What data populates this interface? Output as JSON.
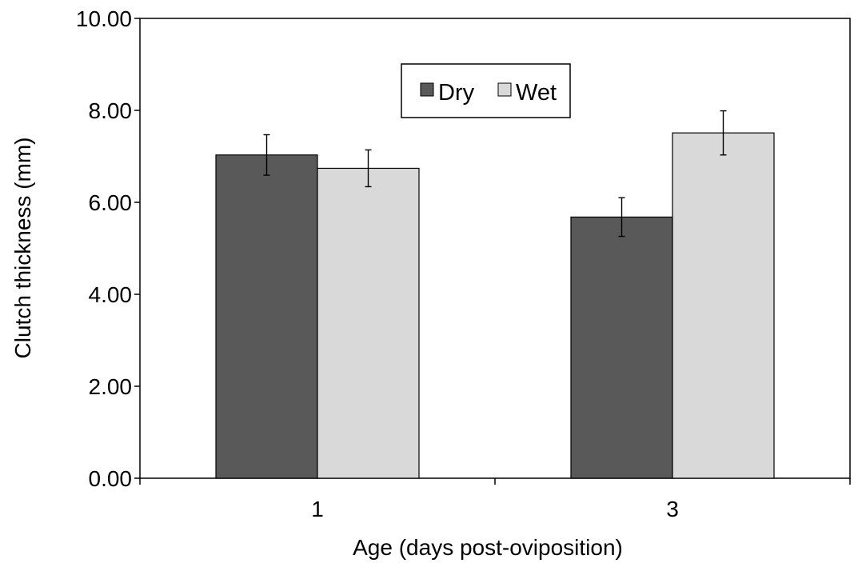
{
  "chart_data": {
    "type": "bar",
    "xlabel": "Age (days post-oviposition)",
    "ylabel": "Clutch thickness (mm)",
    "ylim": [
      0,
      10
    ],
    "y_ticks": [
      "0.00",
      "2.00",
      "4.00",
      "6.00",
      "8.00",
      "10.00"
    ],
    "categories": [
      "1",
      "3"
    ],
    "series": [
      {
        "name": "Dry",
        "color": "#595959",
        "values": [
          7.03,
          5.68
        ],
        "errors": [
          0.44,
          0.42
        ]
      },
      {
        "name": "Wet",
        "color": "#d9d9d9",
        "values": [
          6.74,
          7.51
        ],
        "errors": [
          0.4,
          0.48
        ]
      }
    ],
    "grid": false,
    "legend_position": "top-center"
  }
}
